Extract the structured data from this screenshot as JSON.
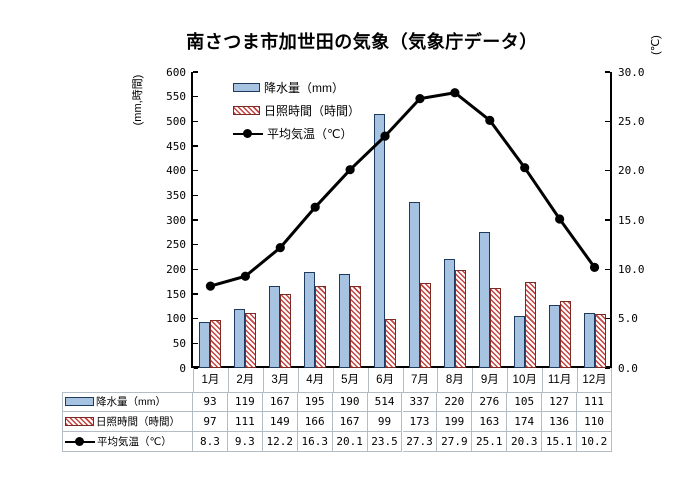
{
  "title": "南さつま市加世田の気象（気象庁データ）",
  "chart_data": {
    "type": "combo-bar-line",
    "title": "南さつま市加世田の気象（気象庁データ）",
    "categories": [
      "1月",
      "2月",
      "3月",
      "4月",
      "5月",
      "6月",
      "7月",
      "8月",
      "9月",
      "10月",
      "11月",
      "12月"
    ],
    "series": [
      {
        "name": "降水量（mm）",
        "type": "bar",
        "axis": "left",
        "decimals": 0,
        "fill": "#a6c4e2",
        "border": "#1f3a5f",
        "values": [
          93,
          119,
          167,
          195,
          190,
          514,
          337,
          220,
          276,
          105,
          127,
          111
        ]
      },
      {
        "name": "日照時間（時間）",
        "type": "bar",
        "axis": "left",
        "decimals": 0,
        "hatch": true,
        "stripe": "#c74341",
        "border": "#7e2a24",
        "values": [
          97,
          111,
          149,
          166,
          167,
          99,
          173,
          199,
          163,
          174,
          136,
          110
        ]
      },
      {
        "name": "平均気温（℃）",
        "type": "line",
        "axis": "right",
        "decimals": 1,
        "color": "#000000",
        "values": [
          8.3,
          9.3,
          12.2,
          16.3,
          20.1,
          23.5,
          27.3,
          27.9,
          25.1,
          20.3,
          15.1,
          10.2
        ]
      }
    ],
    "left_axis": {
      "label": "(mm,時間)",
      "min": 0,
      "max": 600,
      "step": 50,
      "decimals": 0
    },
    "right_axis": {
      "label": "(℃)",
      "min": 0,
      "max": 30,
      "step": 5,
      "decimals": 1
    },
    "grid": false,
    "legend_position": "top-left-inside"
  }
}
